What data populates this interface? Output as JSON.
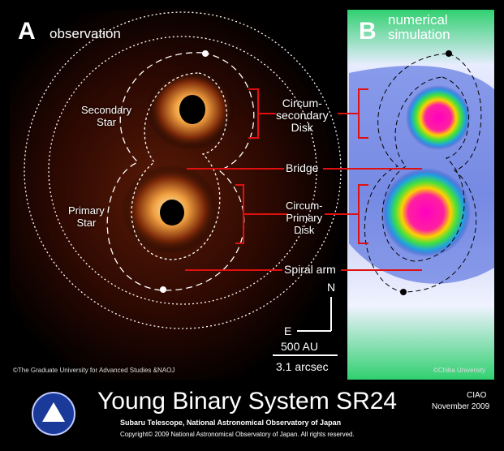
{
  "panel_a": {
    "letter": "A",
    "caption": "observation",
    "secondary_star": [
      "Secondary",
      "Star"
    ],
    "primary_star": [
      "Primary",
      "Star"
    ],
    "credit": "©The Graduate University for Advanced Studies &NAOJ"
  },
  "panel_b": {
    "letter": "B",
    "caption": [
      "numerical",
      "simulation"
    ],
    "credit": "©Chiba University"
  },
  "labels": {
    "circum_secondary": [
      "Circum-",
      "secondary",
      "Disk"
    ],
    "bridge": "Bridge",
    "circum_primary": [
      "Circum-",
      "Primary",
      "Disk"
    ],
    "spiral_arm": "Spiral arm"
  },
  "compass": {
    "north": "N",
    "east": "E"
  },
  "scale": {
    "distance": "500 AU",
    "angle": "3.1 arcsec"
  },
  "footer": {
    "title": "Young Binary System SR24",
    "instrument": "CIAO",
    "date": "November 2009",
    "org": "Subaru Telescope, National Astronomical Observatory of Japan",
    "copyright": "Copyright© 2009 National Astronomical Observatory of Japan. All rights reserved."
  }
}
